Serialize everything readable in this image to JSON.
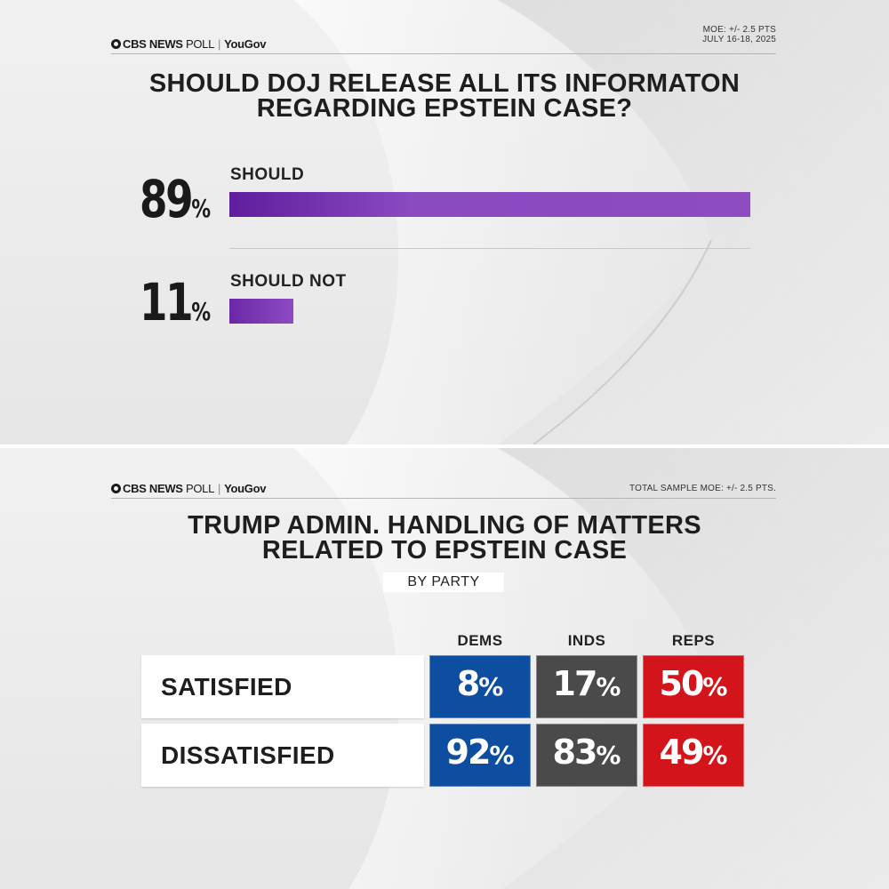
{
  "top": {
    "brand": {
      "cbs": "CBS NEWS",
      "poll": "POLL",
      "partner": "YouGov"
    },
    "meta_line1": "MOE: +/- 2.5 PTS",
    "meta_line2": "JULY 16-18, 2025",
    "title_line1": "SHOULD DOJ RELEASE ALL ITS INFORMATON",
    "title_line2": "REGARDING EPSTEIN CASE?"
  },
  "bottom": {
    "brand": {
      "cbs": "CBS NEWS",
      "poll": "POLL",
      "partner": "YouGov"
    },
    "meta_line1": "TOTAL SAMPLE MOE: +/- 2.5 PTS.",
    "title_line1": "TRUMP ADMIN. HANDLING OF MATTERS",
    "title_line2": "RELATED TO EPSTEIN CASE",
    "subtitle": "BY PARTY"
  },
  "colors": {
    "bar": "#8e4bc2",
    "dems": "#0d4ea0",
    "inds": "#4a4a4a",
    "reps": "#d3141a"
  },
  "chart_data": [
    {
      "type": "bar",
      "title": "SHOULD DOJ RELEASE ALL ITS INFORMATON REGARDING EPSTEIN CASE?",
      "categories": [
        "SHOULD",
        "SHOULD NOT"
      ],
      "values": [
        89,
        11
      ],
      "value_suffix": "%",
      "xlim": [
        0,
        89
      ],
      "orientation": "horizontal"
    },
    {
      "type": "table",
      "title": "TRUMP ADMIN. HANDLING OF MATTERS RELATED TO EPSTEIN CASE",
      "subtitle": "BY PARTY",
      "columns": [
        "DEMS",
        "INDS",
        "REPS"
      ],
      "rows": [
        {
          "label": "SATISFIED",
          "values": [
            8,
            17,
            50
          ]
        },
        {
          "label": "DISSATISFIED",
          "values": [
            92,
            83,
            49
          ]
        }
      ],
      "value_suffix": "%"
    }
  ]
}
